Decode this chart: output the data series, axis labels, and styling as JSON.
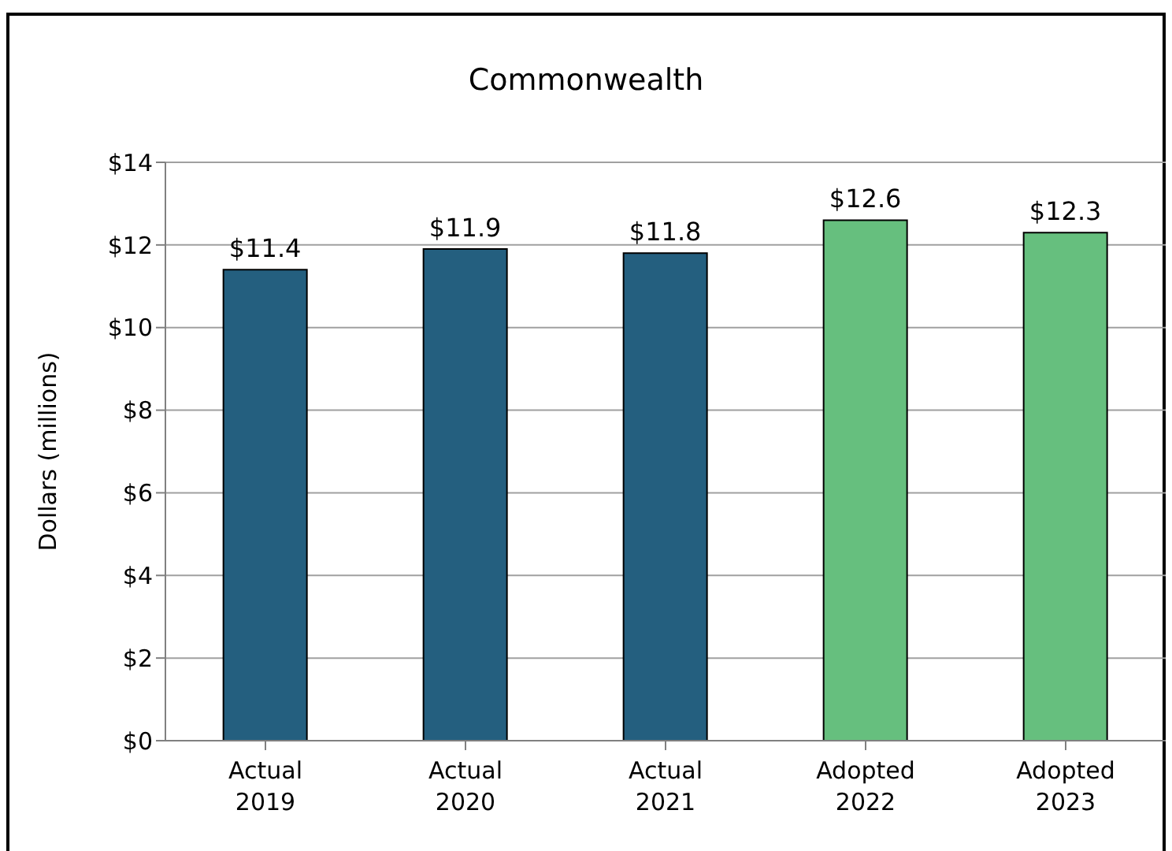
{
  "chart_data": {
    "type": "bar",
    "title": "Commonwealth",
    "ylabel": "Dollars (millions)",
    "categories": [
      "Actual\n2019",
      "Actual\n2020",
      "Actual\n2021",
      "Adopted\n2022",
      "Adopted\n2023"
    ],
    "values": [
      11.4,
      11.9,
      11.8,
      12.6,
      12.3
    ],
    "colors": [
      "#245f7f",
      "#245f7f",
      "#245f7f",
      "#66bf7e",
      "#66bf7e"
    ],
    "value_labels": [
      "$11.4",
      "$11.9",
      "$11.8",
      "$12.6",
      "$12.3"
    ],
    "ylim": [
      0,
      14
    ],
    "yticks": [
      {
        "value": 0,
        "label": "$0"
      },
      {
        "value": 2,
        "label": "$2"
      },
      {
        "value": 4,
        "label": "$4"
      },
      {
        "value": 6,
        "label": "$6"
      },
      {
        "value": 8,
        "label": "$8"
      },
      {
        "value": 10,
        "label": "$10"
      },
      {
        "value": 12,
        "label": "$12"
      },
      {
        "value": 14,
        "label": "$14"
      }
    ],
    "grid": "y"
  }
}
